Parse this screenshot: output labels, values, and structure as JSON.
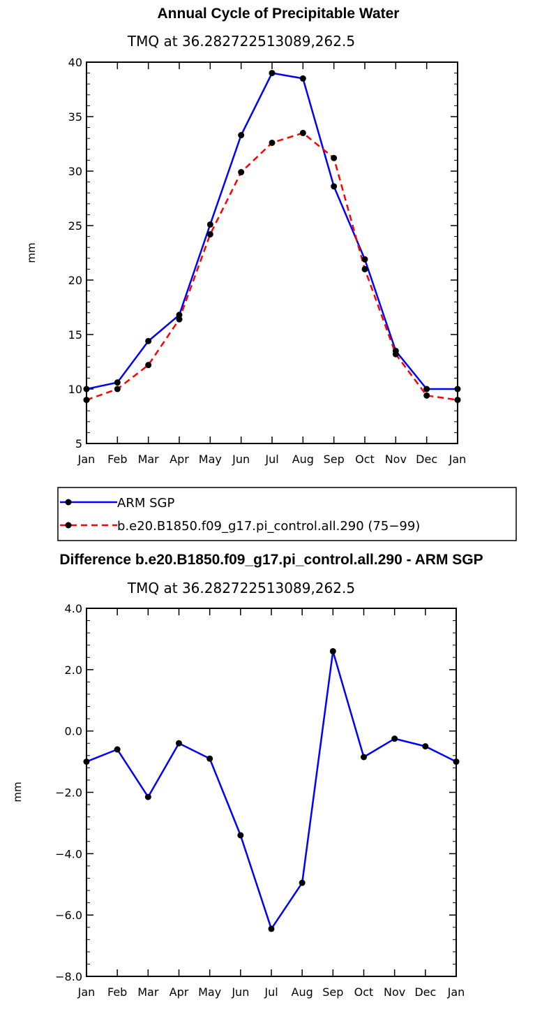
{
  "chart_data": [
    {
      "type": "line",
      "title": "Annual Cycle of Precipitable Water",
      "subtitle": "TMQ at 36.282722513089,262.5",
      "xlabel": "",
      "ylabel": "mm",
      "ylim": [
        5,
        40
      ],
      "yticks": [
        "5",
        "10",
        "15",
        "20",
        "25",
        "30",
        "35",
        "40"
      ],
      "categories": [
        "Jan",
        "Feb",
        "Mar",
        "Apr",
        "May",
        "Jun",
        "Jul",
        "Aug",
        "Sep",
        "Oct",
        "Nov",
        "Dec",
        "Jan"
      ],
      "legend": "below",
      "grid": false,
      "series": [
        {
          "name": "ARM SGP",
          "color": "#0000ff",
          "dash": "solid",
          "values": [
            10.0,
            10.6,
            14.4,
            16.8,
            25.1,
            33.3,
            39.0,
            38.5,
            28.6,
            21.9,
            13.5,
            10.0,
            10.0
          ]
        },
        {
          "name": "b.e20.B1850.f09_g17.pi_control.all.290 (75−99)",
          "color": "#ff0000",
          "dash": "dashed",
          "values": [
            9.0,
            10.0,
            12.2,
            16.4,
            24.2,
            29.9,
            32.6,
            33.5,
            31.2,
            21.0,
            13.2,
            9.4,
            9.0
          ]
        }
      ]
    },
    {
      "type": "line",
      "title": "Difference b.e20.B1850.f09_g17.pi_control.all.290 - ARM SGP",
      "subtitle": "TMQ at 36.282722513089,262.5",
      "xlabel": "",
      "ylabel": "mm",
      "ylim": [
        -8,
        4
      ],
      "yticks": [
        "−8.0",
        "−6.0",
        "−4.0",
        "−2.0",
        "0.0",
        "2.0",
        "4.0"
      ],
      "categories": [
        "Jan",
        "Feb",
        "Mar",
        "Apr",
        "May",
        "Jun",
        "Jul",
        "Aug",
        "Sep",
        "Oct",
        "Nov",
        "Dec",
        "Jan"
      ],
      "grid": false,
      "series": [
        {
          "color": "#0000ff",
          "dash": "solid",
          "values": [
            -1.0,
            -0.6,
            -2.15,
            -0.4,
            -0.9,
            -3.4,
            -6.45,
            -4.95,
            2.6,
            -0.85,
            -0.25,
            -0.5,
            -1.0
          ]
        }
      ]
    }
  ]
}
